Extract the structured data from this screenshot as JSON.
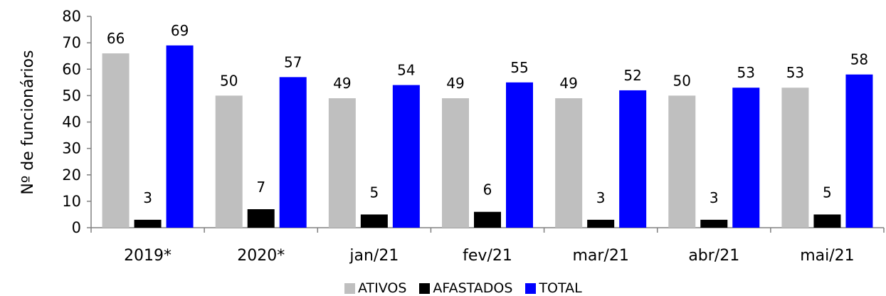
{
  "chart_data": {
    "type": "bar",
    "ylabel": "Nº de funcionários",
    "ylim": [
      0,
      80
    ],
    "yticks": [
      "0",
      "10",
      "20",
      "30",
      "40",
      "50",
      "60",
      "70",
      "80"
    ],
    "categories": [
      "2019*",
      "2020*",
      "jan/21",
      "fev/21",
      "mar/21",
      "abr/21",
      "mai/21"
    ],
    "series": [
      {
        "name": "ATIVOS",
        "color": "#bfbfbf",
        "values": [
          66,
          50,
          49,
          49,
          49,
          50,
          53
        ]
      },
      {
        "name": "AFASTADOS",
        "color": "#000000",
        "values": [
          3,
          7,
          5,
          6,
          3,
          3,
          5
        ]
      },
      {
        "name": "TOTAL",
        "color": "#0000ff",
        "values": [
          69,
          57,
          54,
          55,
          52,
          53,
          58
        ]
      }
    ],
    "legend_position": "bottom",
    "grid": false
  }
}
